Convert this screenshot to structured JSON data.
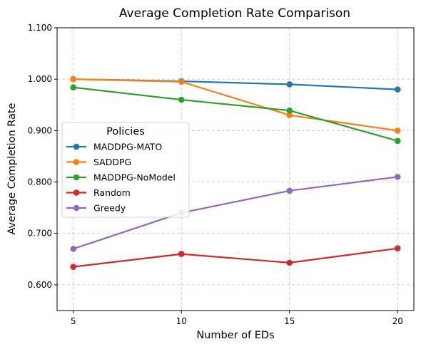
{
  "chart_data": {
    "type": "line",
    "title": "Average Completion Rate Comparison",
    "xlabel": "Number of EDs",
    "ylabel": "Average Completion Rate",
    "x": [
      5,
      10,
      15,
      20
    ],
    "x_tick_labels": [
      "5",
      "10",
      "15",
      "20"
    ],
    "xlim": [
      4.25,
      20.75
    ],
    "ylim": [
      0.55,
      1.1
    ],
    "y_ticks": [
      0.6,
      0.7,
      0.8,
      0.9,
      1.0,
      1.1
    ],
    "y_tick_labels": [
      "0.600",
      "0.700",
      "0.800",
      "0.900",
      "1.000",
      "1.100"
    ],
    "grid": true,
    "legend": {
      "title": "Policies",
      "placement": "center-left"
    },
    "series": [
      {
        "name": "MADDPG-MATO",
        "color": "#1f77b4",
        "values": [
          1.0,
          0.996,
          0.99,
          0.98
        ]
      },
      {
        "name": "SADDPG",
        "color": "#ff7f0e",
        "values": [
          1.0,
          0.995,
          0.93,
          0.9
        ]
      },
      {
        "name": "MADDPG-NoModel",
        "color": "#2ca02c",
        "values": [
          0.984,
          0.96,
          0.939,
          0.88
        ]
      },
      {
        "name": "Random",
        "color": "#d62728",
        "values": [
          0.635,
          0.66,
          0.643,
          0.671
        ]
      },
      {
        "name": "Greedy",
        "color": "#9467bd",
        "values": [
          0.67,
          0.74,
          0.783,
          0.81
        ]
      }
    ]
  }
}
